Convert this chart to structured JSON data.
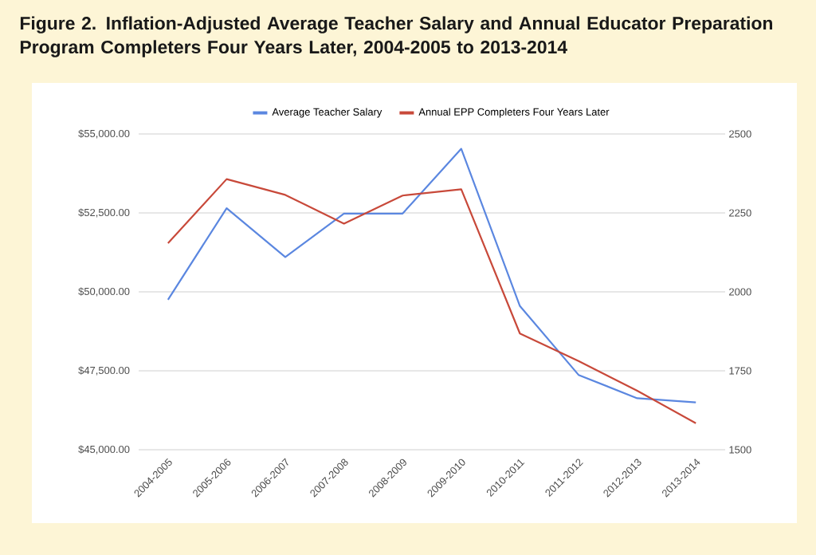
{
  "chart_data": {
    "type": "line",
    "title": "Figure 2. Inflation-Adjusted Average Teacher Salary and Annual Educator Preparation Program Completers Four Years Later, 2004-2005 to 2013-2014",
    "categories": [
      "2004-2005",
      "2005-2006",
      "2006-2007",
      "2007-2008",
      "2008-2009",
      "2009-2010",
      "2010-2011",
      "2011-2012",
      "2012-2013",
      "2013-2014"
    ],
    "series": [
      {
        "name": "Average Teacher Salary",
        "color": "#5b87e0",
        "values": [
          49750,
          52650,
          51100,
          52480,
          52480,
          54530,
          49550,
          47370,
          46630,
          46500
        ]
      },
      {
        "name": "Annual EPP Completers Four Years Later",
        "color": "#c8493a",
        "axis": "y2",
        "values": [
          2154,
          2357,
          2307,
          2216,
          2305,
          2325,
          1868,
          1781,
          1687,
          1584
        ]
      }
    ],
    "ylim": [
      45000,
      55000
    ],
    "yticks": [
      {
        "value": 45000,
        "label": "$45,000.00"
      },
      {
        "value": 47500,
        "label": "$47,500.00"
      },
      {
        "value": 50000,
        "label": "$50,000.00"
      },
      {
        "value": 52500,
        "label": "$52,500.00"
      },
      {
        "value": 55000,
        "label": "$55,000.00"
      }
    ],
    "y2lim": [
      1500,
      2500
    ],
    "y2ticks": [
      1500,
      1750,
      2000,
      2250,
      2500
    ],
    "grid": "y",
    "legend": "top",
    "marker": "none",
    "line_style": "solid"
  }
}
